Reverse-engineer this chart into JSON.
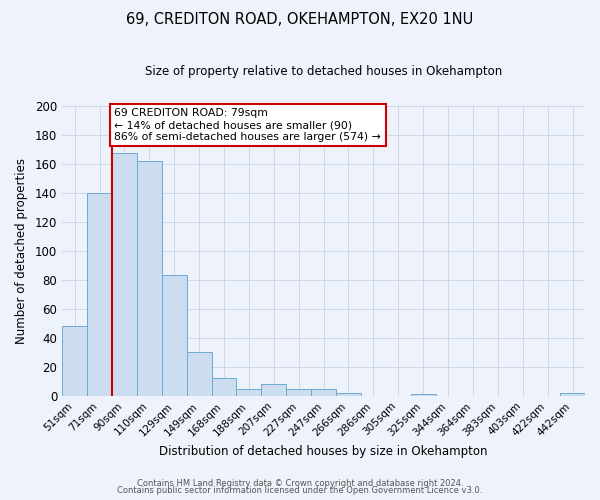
{
  "title": "69, CREDITON ROAD, OKEHAMPTON, EX20 1NU",
  "subtitle": "Size of property relative to detached houses in Okehampton",
  "xlabel": "Distribution of detached houses by size in Okehampton",
  "ylabel": "Number of detached properties",
  "footer_line1": "Contains HM Land Registry data © Crown copyright and database right 2024.",
  "footer_line2": "Contains public sector information licensed under the Open Government Licence v3.0.",
  "bar_labels": [
    "51sqm",
    "71sqm",
    "90sqm",
    "110sqm",
    "129sqm",
    "149sqm",
    "168sqm",
    "188sqm",
    "207sqm",
    "227sqm",
    "247sqm",
    "266sqm",
    "286sqm",
    "305sqm",
    "325sqm",
    "344sqm",
    "364sqm",
    "383sqm",
    "403sqm",
    "422sqm",
    "442sqm"
  ],
  "bar_values": [
    48,
    140,
    167,
    162,
    83,
    30,
    12,
    5,
    8,
    5,
    5,
    2,
    0,
    0,
    1,
    0,
    0,
    0,
    0,
    0,
    2
  ],
  "bar_color": "#ccddf0",
  "bar_edge_color": "#6aaad4",
  "background_color": "#eef2fa",
  "grid_color": "#c8d4e8",
  "red_line_color": "#cc0000",
  "red_line_index": 2,
  "annotation_text_line1": "69 CREDITON ROAD: 79sqm",
  "annotation_text_line2": "← 14% of detached houses are smaller (90)",
  "annotation_text_line3": "86% of semi-detached houses are larger (574) →",
  "annotation_box_facecolor": "white",
  "annotation_box_edgecolor": "#cc0000",
  "ylim": [
    0,
    200
  ],
  "yticks": [
    0,
    20,
    40,
    60,
    80,
    100,
    120,
    140,
    160,
    180,
    200
  ]
}
